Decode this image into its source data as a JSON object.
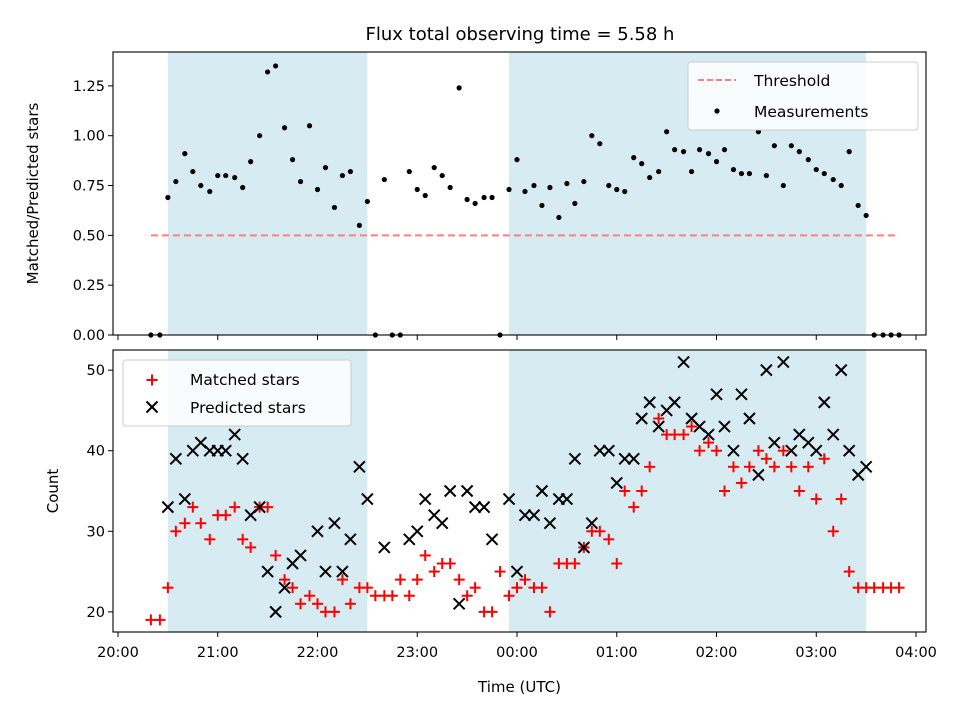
{
  "colors": {
    "band": "#add8e6",
    "threshold": "#ff7f7f",
    "measurement": "#000000",
    "matched": "#ff0000",
    "predicted": "#000000"
  },
  "chart_data": [
    {
      "type": "scatter",
      "title": "Flux total observing time = 5.58 h",
      "xlabel": "",
      "ylabel": "Matched/Predicted stars",
      "ylim": [
        0,
        1.42
      ],
      "yticks": [
        0.0,
        0.25,
        0.5,
        0.75,
        1.0,
        1.25
      ],
      "ytick_labels": [
        "0.00",
        "0.25",
        "0.50",
        "0.75",
        "1.00",
        "1.25"
      ],
      "x_unit": "hours since 20:00 UTC",
      "xlim": [
        -0.05,
        8.1
      ],
      "shaded_bands": [
        [
          0.5,
          2.5
        ],
        [
          3.92,
          7.5
        ]
      ],
      "legend": {
        "placement": "upper right",
        "entries": [
          "Threshold",
          "Measurements"
        ]
      },
      "threshold": {
        "name": "Threshold",
        "y": 0.5,
        "x_range": [
          0.33,
          7.83
        ],
        "style": "dashed"
      },
      "series": [
        {
          "name": "Measurements",
          "marker": "dot",
          "x": [
            0.33,
            0.42,
            0.5,
            0.58,
            0.67,
            0.75,
            0.83,
            0.92,
            1.0,
            1.08,
            1.17,
            1.25,
            1.33,
            1.42,
            1.5,
            1.58,
            1.67,
            1.75,
            1.83,
            1.92,
            2.0,
            2.08,
            2.17,
            2.25,
            2.33,
            2.42,
            2.5,
            2.58,
            2.67,
            2.75,
            2.83,
            2.92,
            3.0,
            3.08,
            3.17,
            3.25,
            3.33,
            3.42,
            3.5,
            3.58,
            3.67,
            3.75,
            3.83,
            3.92,
            4.0,
            4.08,
            4.17,
            4.25,
            4.33,
            4.42,
            4.5,
            4.58,
            4.67,
            4.75,
            4.83,
            4.92,
            5.0,
            5.08,
            5.17,
            5.25,
            5.33,
            5.42,
            5.5,
            5.58,
            5.67,
            5.75,
            5.83,
            5.92,
            6.0,
            6.08,
            6.17,
            6.25,
            6.33,
            6.42,
            6.5,
            6.58,
            6.67,
            6.75,
            6.83,
            6.92,
            7.0,
            7.08,
            7.17,
            7.25,
            7.33,
            7.42,
            7.5,
            7.58,
            7.67,
            7.75,
            7.83
          ],
          "y": [
            0.0,
            0.0,
            0.69,
            0.77,
            0.91,
            0.82,
            0.75,
            0.72,
            0.8,
            0.8,
            0.79,
            0.74,
            0.87,
            1.0,
            1.32,
            1.35,
            1.04,
            0.88,
            0.77,
            1.05,
            0.73,
            0.84,
            0.64,
            0.8,
            0.82,
            0.55,
            0.67,
            0.0,
            0.78,
            0.0,
            0.0,
            0.82,
            0.73,
            0.7,
            0.84,
            0.8,
            0.74,
            1.24,
            0.68,
            0.66,
            0.69,
            0.69,
            0.0,
            0.73,
            0.88,
            0.72,
            0.75,
            0.65,
            0.74,
            0.59,
            0.76,
            0.66,
            0.77,
            1.0,
            0.96,
            0.75,
            0.73,
            0.72,
            0.89,
            0.86,
            0.79,
            0.82,
            1.02,
            0.93,
            0.92,
            0.82,
            0.93,
            0.91,
            0.87,
            0.93,
            0.83,
            0.81,
            0.81,
            1.02,
            0.8,
            0.95,
            0.75,
            0.95,
            0.92,
            0.88,
            0.83,
            0.81,
            0.78,
            0.75,
            0.92,
            0.65,
            0.6,
            0.0,
            0.0,
            0.0,
            0.0
          ]
        }
      ]
    },
    {
      "type": "scatter",
      "title": "",
      "xlabel": "Time (UTC)",
      "ylabel": "Count",
      "ylim": [
        17.5,
        52.5
      ],
      "yticks": [
        20,
        30,
        40,
        50
      ],
      "ytick_labels": [
        "20",
        "30",
        "40",
        "50"
      ],
      "x_unit": "hours since 20:00 UTC",
      "xlim": [
        -0.05,
        8.1
      ],
      "xticks": [
        0,
        1,
        2,
        3,
        4,
        5,
        6,
        7,
        8
      ],
      "xtick_labels": [
        "20:00",
        "21:00",
        "22:00",
        "23:00",
        "00:00",
        "01:00",
        "02:00",
        "03:00",
        "04:00"
      ],
      "shaded_bands": [
        [
          0.5,
          2.5
        ],
        [
          3.92,
          7.5
        ]
      ],
      "legend": {
        "placement": "upper left",
        "entries": [
          "Matched stars",
          "Predicted stars"
        ]
      },
      "series": [
        {
          "name": "Matched stars",
          "marker": "plus",
          "x": [
            0.33,
            0.42,
            0.5,
            0.58,
            0.67,
            0.75,
            0.83,
            0.92,
            1.0,
            1.08,
            1.17,
            1.25,
            1.33,
            1.42,
            1.5,
            1.58,
            1.67,
            1.75,
            1.83,
            1.92,
            2.0,
            2.08,
            2.17,
            2.25,
            2.33,
            2.42,
            2.5,
            2.58,
            2.67,
            2.75,
            2.83,
            2.92,
            3.0,
            3.08,
            3.17,
            3.25,
            3.33,
            3.42,
            3.5,
            3.58,
            3.67,
            3.75,
            3.83,
            3.92,
            4.0,
            4.08,
            4.17,
            4.25,
            4.33,
            4.42,
            4.5,
            4.58,
            4.67,
            4.75,
            4.83,
            4.92,
            5.0,
            5.08,
            5.17,
            5.25,
            5.33,
            5.42,
            5.5,
            5.58,
            5.67,
            5.75,
            5.83,
            5.92,
            6.0,
            6.08,
            6.17,
            6.25,
            6.33,
            6.42,
            6.5,
            6.58,
            6.67,
            6.75,
            6.83,
            6.92,
            7.0,
            7.08,
            7.17,
            7.25,
            7.33,
            7.42,
            7.5,
            7.58,
            7.67,
            7.75,
            7.83
          ],
          "y": [
            19,
            19,
            23,
            30,
            31,
            33,
            31,
            29,
            32,
            32,
            33,
            29,
            28,
            33,
            33,
            27,
            24,
            23,
            21,
            22,
            21,
            20,
            20,
            24,
            21,
            23,
            23,
            22,
            22,
            22,
            24,
            22,
            24,
            27,
            25,
            26,
            26,
            24,
            22,
            23,
            20,
            20,
            25,
            22,
            23,
            24,
            23,
            23,
            20,
            26,
            26,
            26,
            28,
            30,
            30,
            29,
            26,
            35,
            33,
            35,
            38,
            44,
            42,
            42,
            42,
            43,
            40,
            41,
            40,
            35,
            38,
            36,
            38,
            40,
            39,
            38,
            40,
            38,
            35,
            38,
            34,
            39,
            30,
            34,
            25,
            23,
            23,
            23,
            23,
            23,
            23
          ]
        },
        {
          "name": "Predicted stars",
          "marker": "x",
          "x": [
            0.5,
            0.58,
            0.67,
            0.75,
            0.83,
            0.92,
            1.0,
            1.08,
            1.17,
            1.25,
            1.33,
            1.42,
            1.5,
            1.58,
            1.67,
            1.75,
            1.83,
            2.0,
            2.08,
            2.17,
            2.25,
            2.33,
            2.42,
            2.5,
            2.67,
            2.92,
            3.0,
            3.08,
            3.17,
            3.25,
            3.33,
            3.42,
            3.5,
            3.58,
            3.67,
            3.75,
            3.92,
            4.0,
            4.08,
            4.17,
            4.25,
            4.33,
            4.42,
            4.5,
            4.58,
            4.67,
            4.75,
            4.83,
            4.92,
            5.0,
            5.08,
            5.17,
            5.25,
            5.33,
            5.42,
            5.5,
            5.58,
            5.67,
            5.75,
            5.83,
            5.92,
            6.0,
            6.08,
            6.17,
            6.25,
            6.33,
            6.42,
            6.5,
            6.58,
            6.67,
            6.75,
            6.83,
            6.92,
            7.0,
            7.08,
            7.17,
            7.25,
            7.33,
            7.42,
            7.5
          ],
          "y": [
            33,
            39,
            34,
            40,
            41,
            40,
            40,
            40,
            42,
            39,
            32,
            33,
            25,
            20,
            23,
            26,
            27,
            30,
            25,
            31,
            25,
            29,
            38,
            34,
            28,
            29,
            30,
            34,
            32,
            31,
            35,
            21,
            35,
            33,
            33,
            29,
            34,
            25,
            32,
            32,
            35,
            31,
            34,
            34,
            39,
            28,
            31,
            40,
            40,
            36,
            39,
            39,
            44,
            46,
            43,
            45,
            46,
            51,
            44,
            43,
            42,
            47,
            43,
            40,
            47,
            44,
            37,
            50,
            41,
            51,
            40,
            42,
            41,
            40,
            46,
            42,
            50,
            40,
            37,
            38
          ]
        }
      ]
    }
  ]
}
